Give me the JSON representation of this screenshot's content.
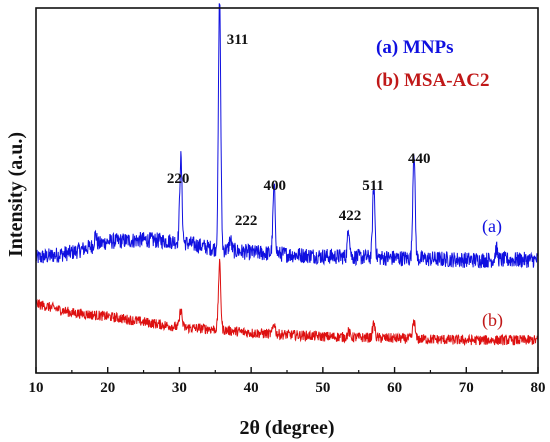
{
  "chart_data": {
    "type": "line",
    "title": "",
    "xlabel": "2θ (degree)",
    "ylabel": "Intensity (a.u.)",
    "xlim": [
      10,
      80
    ],
    "ylim": [
      0,
      100
    ],
    "x_ticks": [
      10,
      20,
      30,
      40,
      50,
      60,
      70,
      80
    ],
    "y_tick_labels_shown": false,
    "grid": false,
    "legend_position": "top-right",
    "series": [
      {
        "name": "(a) MNPs",
        "tag": "(a)",
        "color": "#1010e0",
        "baseline": [
          [
            10,
            31.5
          ],
          [
            15,
            33
          ],
          [
            20,
            36
          ],
          [
            25,
            36.5
          ],
          [
            30,
            36
          ],
          [
            35,
            34
          ],
          [
            40,
            33
          ],
          [
            45,
            32.5
          ],
          [
            50,
            32
          ],
          [
            60,
            31.5
          ],
          [
            70,
            31
          ],
          [
            80,
            31
          ]
        ],
        "peaks": [
          [
            18.3,
            3
          ],
          [
            30.2,
            23
          ],
          [
            35.6,
            69
          ],
          [
            37.1,
            3
          ],
          [
            43.2,
            18
          ],
          [
            53.6,
            8
          ],
          [
            57.1,
            20
          ],
          [
            62.7,
            30
          ],
          [
            74.2,
            3
          ]
        ]
      },
      {
        "name": "(b) MSA-AC2",
        "tag": "(b)",
        "color": "#dd1010",
        "baseline": [
          [
            10,
            19
          ],
          [
            15,
            16.5
          ],
          [
            20,
            15.5
          ],
          [
            25,
            14
          ],
          [
            30,
            12.5
          ],
          [
            35,
            12
          ],
          [
            40,
            11
          ],
          [
            45,
            10.5
          ],
          [
            50,
            10
          ],
          [
            60,
            9.5
          ],
          [
            70,
            9
          ],
          [
            80,
            9
          ]
        ],
        "peaks": [
          [
            30.2,
            5
          ],
          [
            35.6,
            18
          ],
          [
            43.2,
            3
          ],
          [
            53.6,
            1.5
          ],
          [
            57.1,
            4
          ],
          [
            62.7,
            5
          ]
        ]
      }
    ],
    "annotations": [
      {
        "text": "220",
        "x": 30.1
      },
      {
        "text": "311",
        "x": 35.6
      },
      {
        "text": "222",
        "x": 37.2
      },
      {
        "text": "400",
        "x": 43.3
      },
      {
        "text": "422",
        "x": 53.5
      },
      {
        "text": "511",
        "x": 57.0
      },
      {
        "text": "440",
        "x": 62.6
      }
    ]
  }
}
